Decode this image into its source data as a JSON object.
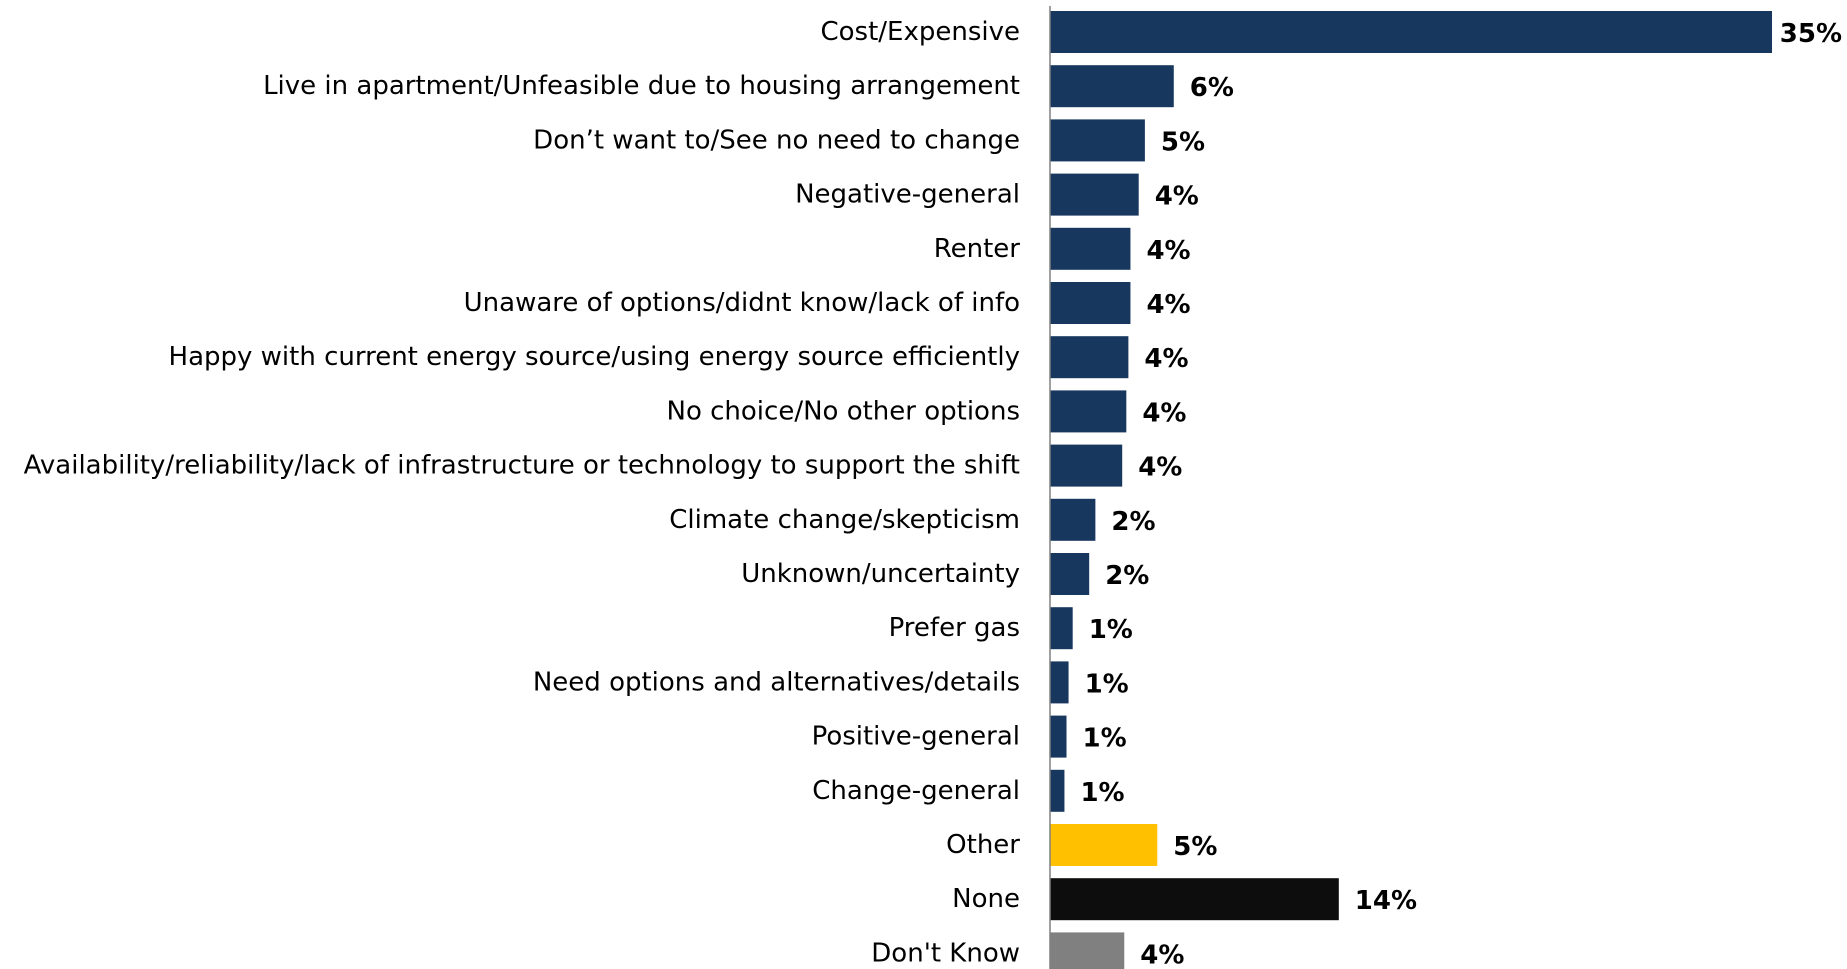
{
  "chart_data": {
    "type": "bar",
    "orientation": "horizontal",
    "categories": [
      "Cost/Expensive",
      "Live in apartment/Unfeasible due to housing arrangement",
      "Don’t want to/See no need to change",
      "Negative-general",
      "Renter",
      "Unaware of options/didnt know/lack of info",
      "Happy with current energy source/using energy source efficiently",
      "No choice/No other options",
      "Availability/reliability/lack of infrastructure or technology to support the shift",
      "Climate change/skepticism",
      "Unknown/uncertainty",
      "Prefer gas",
      "Need options and alternatives/details",
      "Positive-general",
      "Change-general",
      "Other",
      "None",
      "Don't Know"
    ],
    "values": [
      35.0,
      6.0,
      4.6,
      4.3,
      3.9,
      3.9,
      3.8,
      3.7,
      3.5,
      2.2,
      1.9,
      1.1,
      0.9,
      0.8,
      0.7,
      5.2,
      14.0,
      3.6
    ],
    "value_labels": [
      "35%",
      "6%",
      "5%",
      "4%",
      "4%",
      "4%",
      "4%",
      "4%",
      "4%",
      "2%",
      "2%",
      "1%",
      "1%",
      "1%",
      "1%",
      "5%",
      "14%",
      "4%"
    ],
    "bar_colors": [
      "#17375E",
      "#17375E",
      "#17375E",
      "#17375E",
      "#17375E",
      "#17375E",
      "#17375E",
      "#17375E",
      "#17375E",
      "#17375E",
      "#17375E",
      "#17375E",
      "#17375E",
      "#17375E",
      "#17375E",
      "#FFC000",
      "#0D0D0D",
      "#808080"
    ],
    "xlim": [
      0,
      35
    ],
    "axis_color": "#808080",
    "grid": false,
    "legend": "none",
    "title": "",
    "xlabel": "",
    "ylabel": ""
  }
}
